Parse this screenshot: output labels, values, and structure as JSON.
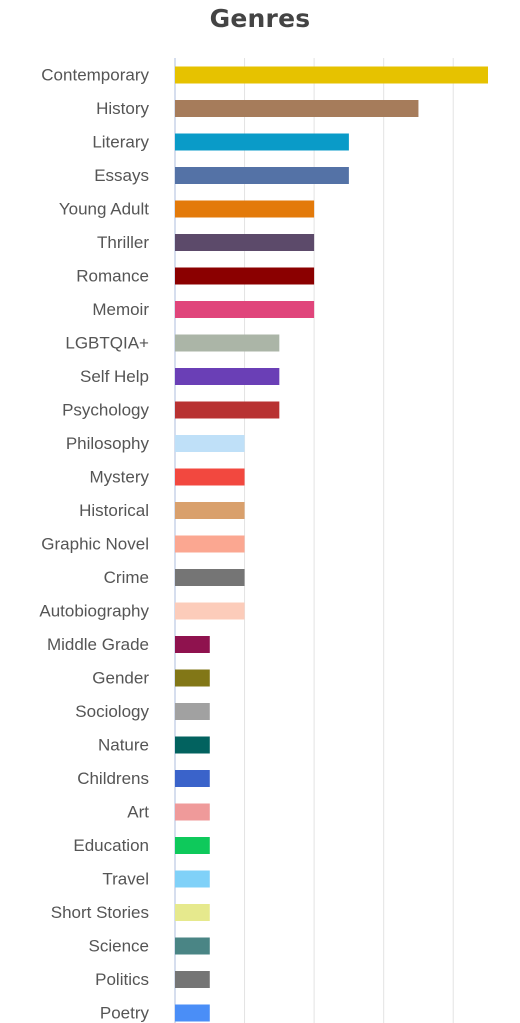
{
  "chart_data": {
    "type": "bar",
    "orientation": "horizontal",
    "title": "Genres",
    "xlabel": "",
    "ylabel": "",
    "xlim": [
      0,
      9
    ],
    "grid": true,
    "legend": "none",
    "categories": [
      "Contemporary",
      "History",
      "Literary",
      "Essays",
      "Young Adult",
      "Thriller",
      "Romance",
      "Memoir",
      "LGBTQIA+",
      "Self Help",
      "Psychology",
      "Philosophy",
      "Mystery",
      "Historical",
      "Graphic Novel",
      "Crime",
      "Autobiography",
      "Middle Grade",
      "Gender",
      "Sociology",
      "Nature",
      "Childrens",
      "Art",
      "Education",
      "Travel",
      "Short Stories",
      "Science",
      "Politics",
      "Poetry"
    ],
    "values": [
      9,
      7,
      5,
      5,
      4,
      4,
      4,
      4,
      3,
      3,
      3,
      2,
      2,
      2,
      2,
      2,
      2,
      1,
      1,
      1,
      1,
      1,
      1,
      1,
      1,
      1,
      1,
      1,
      1
    ],
    "colors": [
      "#E6C200",
      "#A67C5B",
      "#0A9BC8",
      "#5472A6",
      "#E37A0A",
      "#5C4A6A",
      "#8B0000",
      "#E0457B",
      "#ABB5A7",
      "#6A3FB6",
      "#B83232",
      "#BFE0F8",
      "#F2483F",
      "#D9A06C",
      "#FBA791",
      "#757575",
      "#FCCCBA",
      "#8F124E",
      "#827717",
      "#A1A1A1",
      "#02625F",
      "#3A63CA",
      "#EF9A9A",
      "#0EC95B",
      "#80D1F8",
      "#E6E98D",
      "#4A8585",
      "#757575",
      "#4A8EF7"
    ]
  }
}
